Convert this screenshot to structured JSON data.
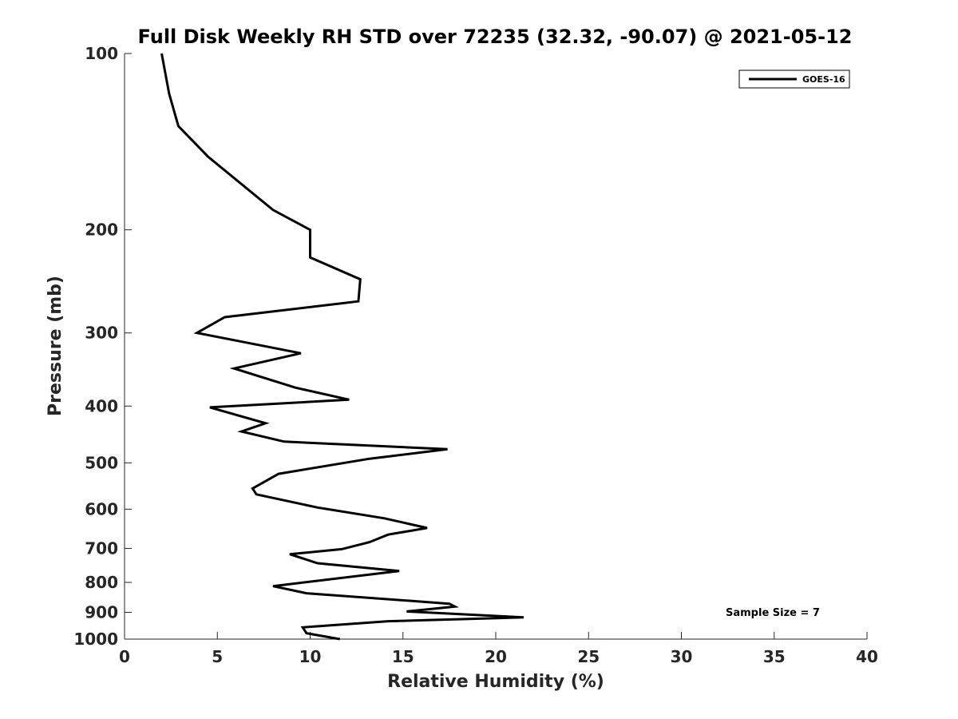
{
  "chart_data": {
    "type": "line",
    "title": "Full Disk Weekly RH STD over 72235 (32.32, -90.07) @ 2021-05-12",
    "xlabel": "Relative Humidity (%)",
    "ylabel": "Pressure (mb)",
    "xlim": [
      0,
      40
    ],
    "ylim": [
      100,
      1000
    ],
    "yscale": "log",
    "yreversed": true,
    "xticks": [
      0,
      5,
      10,
      15,
      20,
      25,
      30,
      35,
      40
    ],
    "yticks": [
      100,
      200,
      300,
      400,
      500,
      600,
      700,
      800,
      900,
      1000
    ],
    "grid": false,
    "legend_position": "top-right",
    "series": [
      {
        "name": "GOES-16",
        "color": "#000000",
        "x": [
          2.0,
          2.4,
          2.9,
          4.5,
          8.0,
          10.0,
          10.0,
          12.7,
          12.6,
          5.4,
          3.9,
          9.5,
          5.9,
          9.2,
          12.1,
          4.6,
          7.6,
          6.3,
          8.6,
          17.4,
          13.2,
          8.3,
          6.9,
          7.1,
          10.4,
          14.0,
          16.3,
          14.2,
          13.2,
          11.7,
          8.9,
          10.4,
          14.8,
          8.0,
          9.8,
          17.5,
          17.8,
          15.2,
          21.5,
          14.2,
          9.6,
          9.8,
          11.6
        ],
        "y": [
          100,
          117,
          133,
          150,
          185,
          200,
          223,
          243,
          265,
          282,
          300,
          325,
          345,
          372,
          390,
          402,
          428,
          442,
          460,
          474,
          492,
          522,
          553,
          566,
          596,
          622,
          646,
          663,
          683,
          702,
          716,
          742,
          765,
          812,
          835,
          870,
          880,
          897,
          918,
          932,
          955,
          977,
          1000
        ]
      }
    ],
    "annotations": [
      {
        "text": "Sample Size = 7"
      }
    ]
  }
}
